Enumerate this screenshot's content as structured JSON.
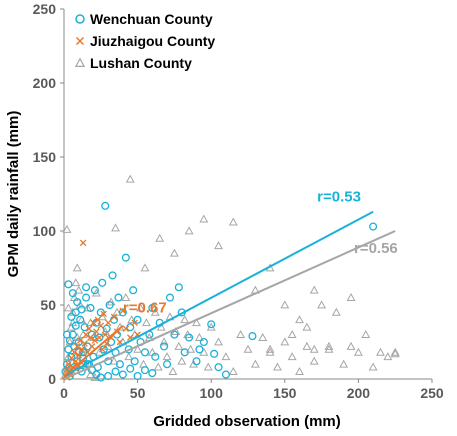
{
  "chart_data": {
    "type": "scatter",
    "title": "",
    "xlabel": "Gridded observation (mm)",
    "ylabel": "GPM daily rainfall (mm)",
    "xlim": [
      0,
      250
    ],
    "ylim": [
      0,
      250
    ],
    "xticks": [
      "0",
      "50",
      "100",
      "150",
      "200",
      "250"
    ],
    "yticks": [
      "0",
      "50",
      "100",
      "150",
      "200",
      "250"
    ],
    "grid": false,
    "legend_position": "top-left",
    "series": [
      {
        "name": "Wenchuan County",
        "marker": "circle",
        "color": "#1ab2d8",
        "r_label": "r=0.53",
        "fit": [
          [
            0,
            2
          ],
          [
            210,
            113
          ]
        ],
        "points": [
          [
            1,
            5
          ],
          [
            2,
            10
          ],
          [
            3,
            20
          ],
          [
            4,
            2
          ],
          [
            5,
            15
          ],
          [
            6,
            30
          ],
          [
            7,
            8
          ],
          [
            8,
            45
          ],
          [
            9,
            12
          ],
          [
            10,
            25
          ],
          [
            11,
            40
          ],
          [
            12,
            5
          ],
          [
            13,
            18
          ],
          [
            14,
            35
          ],
          [
            15,
            55
          ],
          [
            16,
            22
          ],
          [
            17,
            10
          ],
          [
            18,
            48
          ],
          [
            19,
            30
          ],
          [
            20,
            15
          ],
          [
            21,
            60
          ],
          [
            22,
            38
          ],
          [
            23,
            8
          ],
          [
            24,
            28
          ],
          [
            25,
            45
          ],
          [
            26,
            65
          ],
          [
            27,
            20
          ],
          [
            28,
            117
          ],
          [
            29,
            34
          ],
          [
            30,
            12
          ],
          [
            31,
            50
          ],
          [
            32,
            25
          ],
          [
            33,
            70
          ],
          [
            34,
            40
          ],
          [
            35,
            18
          ],
          [
            36,
            30
          ],
          [
            37,
            55
          ],
          [
            38,
            10
          ],
          [
            40,
            45
          ],
          [
            42,
            82
          ],
          [
            44,
            20
          ],
          [
            45,
            35
          ],
          [
            47,
            60
          ],
          [
            48,
            12
          ],
          [
            50,
            40
          ],
          [
            52,
            25
          ],
          [
            55,
            18
          ],
          [
            58,
            30
          ],
          [
            60,
            48
          ],
          [
            62,
            15
          ],
          [
            65,
            38
          ],
          [
            68,
            22
          ],
          [
            70,
            10
          ],
          [
            72,
            55
          ],
          [
            75,
            30
          ],
          [
            78,
            62
          ],
          [
            80,
            45
          ],
          [
            82,
            18
          ],
          [
            85,
            28
          ],
          [
            90,
            12
          ],
          [
            92,
            20
          ],
          [
            95,
            25
          ],
          [
            100,
            37
          ],
          [
            102,
            17
          ],
          [
            105,
            8
          ],
          [
            110,
            3
          ],
          [
            128,
            29
          ],
          [
            210,
            103
          ],
          [
            3,
            64
          ],
          [
            6,
            58
          ],
          [
            9,
            52
          ],
          [
            12,
            47
          ],
          [
            15,
            62
          ],
          [
            5,
            42
          ],
          [
            8,
            36
          ],
          [
            2,
            30
          ],
          [
            4,
            26
          ],
          [
            7,
            22
          ],
          [
            10,
            18
          ],
          [
            13,
            14
          ],
          [
            16,
            10
          ],
          [
            19,
            6
          ],
          [
            22,
            3
          ],
          [
            25,
            1
          ],
          [
            30,
            2
          ],
          [
            35,
            5
          ],
          [
            40,
            3
          ],
          [
            45,
            7
          ],
          [
            50,
            2
          ],
          [
            55,
            6
          ],
          [
            60,
            4
          ]
        ]
      },
      {
        "name": "Jiuzhaigou County",
        "marker": "x",
        "color": "#e8782a",
        "r_label": "r=0.67",
        "fit": [
          [
            0,
            2
          ],
          [
            40,
            36
          ]
        ],
        "points": [
          [
            1,
            2
          ],
          [
            2,
            6
          ],
          [
            3,
            10
          ],
          [
            4,
            4
          ],
          [
            5,
            14
          ],
          [
            6,
            8
          ],
          [
            7,
            18
          ],
          [
            8,
            12
          ],
          [
            9,
            22
          ],
          [
            10,
            16
          ],
          [
            11,
            26
          ],
          [
            12,
            20
          ],
          [
            13,
            92
          ],
          [
            14,
            24
          ],
          [
            15,
            30
          ],
          [
            16,
            18
          ],
          [
            17,
            34
          ],
          [
            18,
            28
          ],
          [
            19,
            22
          ],
          [
            20,
            38
          ],
          [
            21,
            26
          ],
          [
            22,
            32
          ],
          [
            23,
            40
          ],
          [
            24,
            28
          ],
          [
            25,
            36
          ],
          [
            26,
            20
          ],
          [
            27,
            44
          ],
          [
            28,
            30
          ],
          [
            29,
            24
          ],
          [
            30,
            38
          ],
          [
            32,
            28
          ],
          [
            34,
            42
          ],
          [
            36,
            32
          ],
          [
            38,
            25
          ],
          [
            40,
            46
          ],
          [
            42,
            34
          ],
          [
            45,
            28
          ],
          [
            48,
            38
          ],
          [
            50,
            30
          ],
          [
            2,
            1
          ],
          [
            4,
            3
          ],
          [
            6,
            5
          ],
          [
            8,
            7
          ],
          [
            10,
            9
          ],
          [
            12,
            11
          ]
        ]
      },
      {
        "name": "Lushan County",
        "marker": "triangle",
        "color": "#a6a6a6",
        "r_label": "r=0.56",
        "fit": [
          [
            0,
            0
          ],
          [
            225,
            100
          ]
        ],
        "points": [
          [
            1,
            3
          ],
          [
            2,
            8
          ],
          [
            3,
            15
          ],
          [
            4,
            25
          ],
          [
            5,
            35
          ],
          [
            6,
            45
          ],
          [
            7,
            55
          ],
          [
            8,
            65
          ],
          [
            9,
            75
          ],
          [
            10,
            60
          ],
          [
            11,
            50
          ],
          [
            12,
            40
          ],
          [
            13,
            30
          ],
          [
            14,
            20
          ],
          [
            15,
            10
          ],
          [
            16,
            48
          ],
          [
            18,
            38
          ],
          [
            20,
            28
          ],
          [
            22,
            58
          ],
          [
            24,
            18
          ],
          [
            26,
            42
          ],
          [
            28,
            32
          ],
          [
            30,
            22
          ],
          [
            32,
            52
          ],
          [
            34,
            12
          ],
          [
            36,
            45
          ],
          [
            38,
            35
          ],
          [
            40,
            25
          ],
          [
            42,
            55
          ],
          [
            44,
            15
          ],
          [
            46,
            40
          ],
          [
            48,
            30
          ],
          [
            50,
            20
          ],
          [
            52,
            48
          ],
          [
            54,
            10
          ],
          [
            56,
            38
          ],
          [
            58,
            28
          ],
          [
            60,
            18
          ],
          [
            62,
            45
          ],
          [
            64,
            8
          ],
          [
            66,
            35
          ],
          [
            68,
            25
          ],
          [
            70,
            15
          ],
          [
            72,
            42
          ],
          [
            74,
            5
          ],
          [
            76,
            32
          ],
          [
            78,
            22
          ],
          [
            80,
            12
          ],
          [
            82,
            40
          ],
          [
            84,
            30
          ],
          [
            86,
            20
          ],
          [
            88,
            10
          ],
          [
            90,
            38
          ],
          [
            92,
            28
          ],
          [
            95,
            18
          ],
          [
            98,
            8
          ],
          [
            100,
            35
          ],
          [
            105,
            25
          ],
          [
            110,
            15
          ],
          [
            115,
            5
          ],
          [
            120,
            30
          ],
          [
            125,
            20
          ],
          [
            130,
            10
          ],
          [
            135,
            28
          ],
          [
            140,
            18
          ],
          [
            145,
            8
          ],
          [
            150,
            25
          ],
          [
            155,
            15
          ],
          [
            160,
            5
          ],
          [
            165,
            22
          ],
          [
            170,
            12
          ],
          [
            180,
            20
          ],
          [
            190,
            10
          ],
          [
            200,
            18
          ],
          [
            210,
            8
          ],
          [
            220,
            15
          ],
          [
            225,
            17
          ],
          [
            2,
            101
          ],
          [
            35,
            102
          ],
          [
            45,
            135
          ],
          [
            55,
            75
          ],
          [
            65,
            95
          ],
          [
            75,
            85
          ],
          [
            85,
            100
          ],
          [
            95,
            108
          ],
          [
            105,
            90
          ],
          [
            115,
            106
          ],
          [
            130,
            60
          ],
          [
            140,
            75
          ],
          [
            150,
            50
          ],
          [
            160,
            40
          ],
          [
            170,
            60
          ],
          [
            175,
            50
          ],
          [
            185,
            45
          ],
          [
            195,
            55
          ],
          [
            205,
            30
          ],
          [
            140,
            20
          ],
          [
            155,
            30
          ],
          [
            165,
            35
          ],
          [
            170,
            20
          ],
          [
            180,
            22
          ],
          [
            195,
            22
          ],
          [
            215,
            18
          ],
          [
            225,
            18
          ],
          [
            3,
            48
          ],
          [
            6,
            38
          ],
          [
            9,
            28
          ],
          [
            12,
            18
          ],
          [
            15,
            8
          ],
          [
            18,
            3
          ],
          [
            21,
            1
          ]
        ]
      }
    ]
  }
}
